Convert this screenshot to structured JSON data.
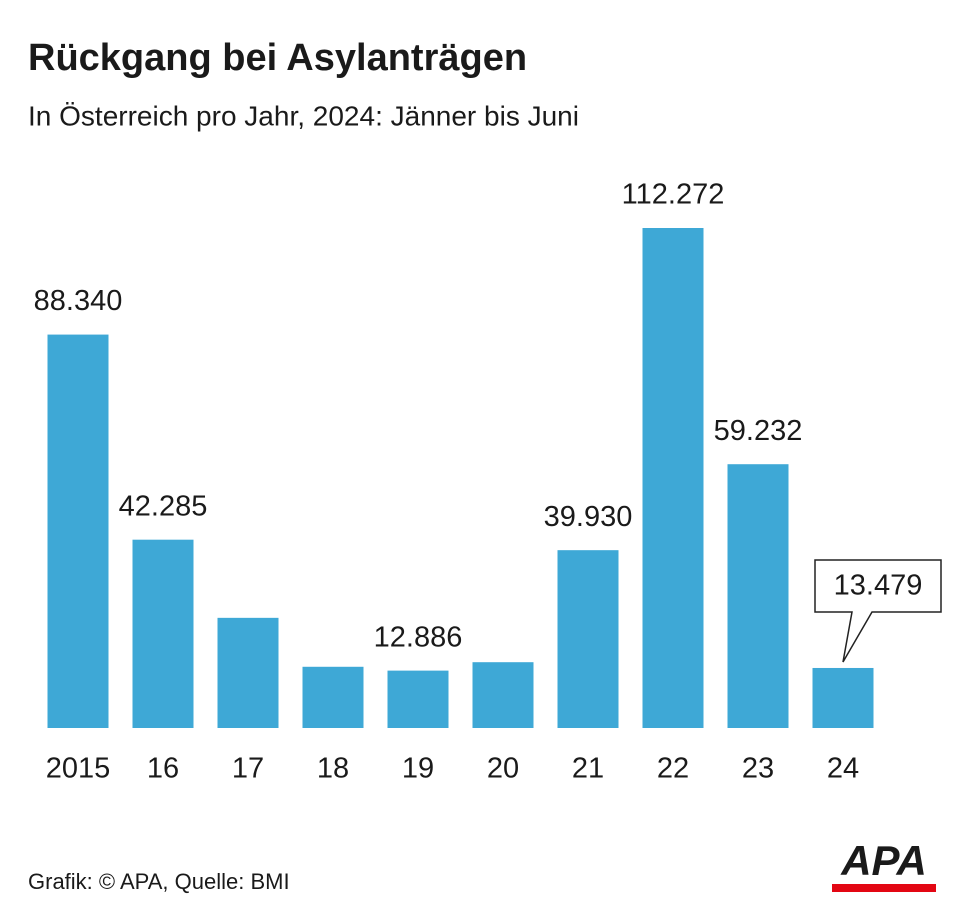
{
  "chart_data": {
    "type": "bar",
    "title": "Rückgang bei Asylanträgen",
    "subtitle": "In Österreich pro Jahr, 2024: Jänner bis Juni",
    "categories": [
      "2015",
      "16",
      "17",
      "18",
      "19",
      "20",
      "21",
      "22",
      "23",
      "24"
    ],
    "values": [
      88340,
      42285,
      24735,
      13746,
      12886,
      14775,
      39930,
      112272,
      59232,
      13479
    ],
    "value_labels": [
      "88.340",
      "42.285",
      null,
      null,
      "12.886",
      null,
      "39.930",
      "112.272",
      "59.232",
      "13.479"
    ],
    "color": "#3ea8d6",
    "source": "Grafik: © APA, Quelle: BMI",
    "logo": "APA"
  }
}
